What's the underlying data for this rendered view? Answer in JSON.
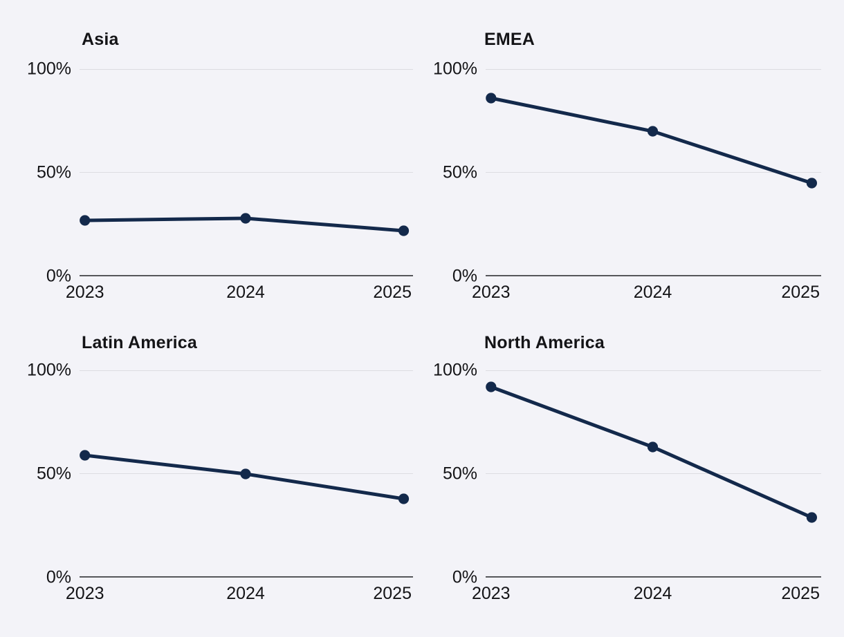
{
  "colors": {
    "background": "#f3f3f8",
    "line": "#13294b",
    "marker": "#13294b",
    "gridline": "#dcdce1",
    "axis_line": "#55565a",
    "text": "#141417"
  },
  "chart_data": [
    {
      "type": "line",
      "title": "Asia",
      "x": [
        2023,
        2024,
        2025
      ],
      "x_tick_labels": [
        "2023",
        "2024",
        "2025"
      ],
      "values": [
        27,
        28,
        22
      ],
      "unit": "%",
      "ylim": [
        0,
        100
      ],
      "y_tick_labels": [
        "100%",
        "50%",
        "0%"
      ],
      "grid": "horizontal-only",
      "legend": "none",
      "markers": true
    },
    {
      "type": "line",
      "title": "EMEA",
      "x": [
        2023,
        2024,
        2025
      ],
      "x_tick_labels": [
        "2023",
        "2024",
        "2025"
      ],
      "values": [
        86,
        70,
        45
      ],
      "unit": "%",
      "ylim": [
        0,
        100
      ],
      "y_tick_labels": [
        "100%",
        "50%",
        "0%"
      ],
      "grid": "horizontal-only",
      "legend": "none",
      "markers": true
    },
    {
      "type": "line",
      "title": "Latin America",
      "x": [
        2023,
        2024,
        2025
      ],
      "x_tick_labels": [
        "2023",
        "2024",
        "2025"
      ],
      "values": [
        59,
        50,
        38
      ],
      "unit": "%",
      "ylim": [
        0,
        100
      ],
      "y_tick_labels": [
        "100%",
        "50%",
        "0%"
      ],
      "grid": "horizontal-only",
      "legend": "none",
      "markers": true
    },
    {
      "type": "line",
      "title": "North America",
      "x": [
        2023,
        2024,
        2025
      ],
      "x_tick_labels": [
        "2023",
        "2024",
        "2025"
      ],
      "values": [
        92,
        63,
        29
      ],
      "unit": "%",
      "ylim": [
        0,
        100
      ],
      "y_tick_labels": [
        "100%",
        "50%",
        "0%"
      ],
      "grid": "horizontal-only",
      "legend": "none",
      "markers": true
    }
  ]
}
